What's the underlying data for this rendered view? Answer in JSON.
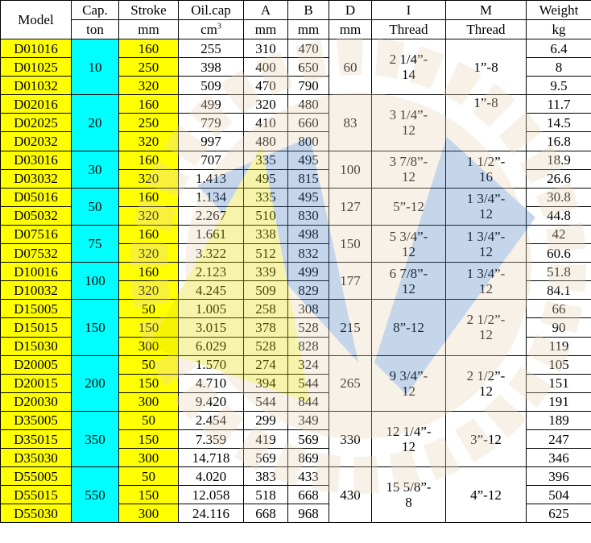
{
  "header": {
    "model": "Model",
    "cap": "Cap.",
    "cap_unit": "ton",
    "stroke": "Stroke",
    "stroke_unit": "mm",
    "oil": "Oil.cap",
    "oil_unit": "cm",
    "oil_unit_sup": "3",
    "a": "A",
    "a_unit": "mm",
    "b": "B",
    "b_unit": "mm",
    "d": "D",
    "d_unit": "mm",
    "i": "I",
    "i_unit": "Thread",
    "m": "M",
    "m_unit": "Thread",
    "weight": "Weight",
    "weight_unit": "kg"
  },
  "colors": {
    "model_bg": "#ffff00",
    "stroke_bg": "#ffff00",
    "cap_bg": "#00ffff"
  },
  "watermark": {
    "icon": "gear-logo",
    "colors": [
      "#e8d5b5",
      "#4f7fbf"
    ]
  },
  "groups": [
    {
      "cap": "10",
      "d": "60",
      "i": "2 1/4”-\n14",
      "m": "1”-8",
      "m_top": false,
      "rows": [
        {
          "model": "D01016",
          "stroke": "160",
          "oil": "255",
          "a": "310",
          "b": "470",
          "weight": "6.4"
        },
        {
          "model": "D01025",
          "stroke": "250",
          "oil": "398",
          "a": "400",
          "b": "650",
          "weight": "8"
        },
        {
          "model": "D01032",
          "stroke": "320",
          "oil": "509",
          "a": "470",
          "b": "790",
          "weight": "9.5"
        }
      ]
    },
    {
      "cap": "20",
      "d": "83",
      "i": "3 1/4”-\n12",
      "m": "1”-8",
      "m_top": true,
      "rows": [
        {
          "model": "D02016",
          "stroke": "160",
          "oil": "499",
          "a": "320",
          "b": "480",
          "weight": "11.7"
        },
        {
          "model": "D02025",
          "stroke": "250",
          "oil": "779",
          "a": "410",
          "b": "660",
          "weight": "14.5"
        },
        {
          "model": "D02032",
          "stroke": "320",
          "oil": "997",
          "a": "480",
          "b": "800",
          "weight": "16.8"
        }
      ]
    },
    {
      "cap": "30",
      "d": "100",
      "i": "3 7/8”-\n12",
      "m": "1 1/2”-\n16",
      "m_top": false,
      "rows": [
        {
          "model": "D03016",
          "stroke": "160",
          "oil": "707",
          "a": "335",
          "b": "495",
          "weight": "18.9"
        },
        {
          "model": "D03032",
          "stroke": "320",
          "oil": "1.413",
          "a": "495",
          "b": "815",
          "weight": "26.6"
        }
      ]
    },
    {
      "cap": "50",
      "d": "127",
      "i": "5”-12",
      "m": "1 3/4”-\n12",
      "m_top": false,
      "rows": [
        {
          "model": "D05016",
          "stroke": "160",
          "oil": "1.134",
          "a": "335",
          "b": "495",
          "weight": "30.8"
        },
        {
          "model": "D05032",
          "stroke": "320",
          "oil": "2.267",
          "a": "510",
          "b": "830",
          "weight": "44.8"
        }
      ]
    },
    {
      "cap": "75",
      "d": "150",
      "i": "5 3/4”-\n12",
      "m": "1 3/4”-\n12",
      "m_top": false,
      "rows": [
        {
          "model": "D07516",
          "stroke": "160",
          "oil": "1.661",
          "a": "338",
          "b": "498",
          "weight": "42"
        },
        {
          "model": "D07532",
          "stroke": "320",
          "oil": "3.322",
          "a": "512",
          "b": "832",
          "weight": "60.6"
        }
      ]
    },
    {
      "cap": "100",
      "d": "177",
      "i": "6 7/8”-\n12",
      "m": "1 3/4”-\n12",
      "m_top": false,
      "rows": [
        {
          "model": "D10016",
          "stroke": "160",
          "oil": "2.123",
          "a": "339",
          "b": "499",
          "weight": "51.8"
        },
        {
          "model": "D10032",
          "stroke": "320",
          "oil": "4.245",
          "a": "509",
          "b": "829",
          "weight": "84.1"
        }
      ]
    },
    {
      "cap": "150",
      "d": "215",
      "i": "8”-12",
      "m": "2 1/2”-\n12",
      "m_top": false,
      "rows": [
        {
          "model": "D15005",
          "stroke": "50",
          "oil": "1.005",
          "a": "258",
          "b": "308",
          "weight": "66"
        },
        {
          "model": "D15015",
          "stroke": "150",
          "oil": "3.015",
          "a": "378",
          "b": "528",
          "weight": "90"
        },
        {
          "model": "D15030",
          "stroke": "300",
          "oil": "6.029",
          "a": "528",
          "b": "828",
          "weight": "119"
        }
      ]
    },
    {
      "cap": "200",
      "d": "265",
      "i": "9 3/4”-\n12",
      "m": "2 1/2”-\n12",
      "m_top": false,
      "rows": [
        {
          "model": "D20005",
          "stroke": "50",
          "oil": "1.570",
          "a": "274",
          "b": "324",
          "weight": "105"
        },
        {
          "model": "D20015",
          "stroke": "150",
          "oil": "4.710",
          "a": "394",
          "b": "544",
          "weight": "151"
        },
        {
          "model": "D20030",
          "stroke": "300",
          "oil": "9.420",
          "a": "544",
          "b": "844",
          "weight": "191"
        }
      ]
    },
    {
      "cap": "350",
      "d": "330",
      "i": "12 1/4”-\n12",
      "m": "3”-12",
      "m_top": false,
      "rows": [
        {
          "model": "D35005",
          "stroke": "50",
          "oil": "2.454",
          "a": "299",
          "b": "349",
          "weight": "189"
        },
        {
          "model": "D35015",
          "stroke": "150",
          "oil": "7.359",
          "a": "419",
          "b": "569",
          "weight": "247"
        },
        {
          "model": "D35030",
          "stroke": "300",
          "oil": "14.718",
          "a": "569",
          "b": "869",
          "weight": "346"
        }
      ]
    },
    {
      "cap": "550",
      "d": "430",
      "i": "15 5/8”-\n8",
      "m": "4”-12",
      "m_top": false,
      "rows": [
        {
          "model": "D55005",
          "stroke": "50",
          "oil": "4.020",
          "a": "383",
          "b": "433",
          "weight": "396"
        },
        {
          "model": "D55015",
          "stroke": "150",
          "oil": "12.058",
          "a": "518",
          "b": "668",
          "weight": "504"
        },
        {
          "model": "D55030",
          "stroke": "300",
          "oil": "24.116",
          "a": "668",
          "b": "968",
          "weight": "625"
        }
      ]
    }
  ]
}
